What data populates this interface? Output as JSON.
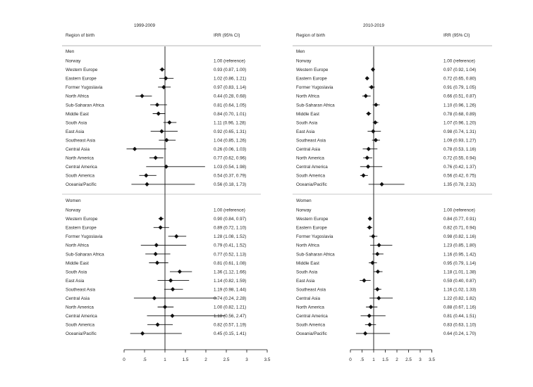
{
  "chart_data": [
    {
      "type": "forest",
      "title": "1999-2009",
      "column_headers": {
        "region": "Region of birth",
        "irr": "IRR (95% CI)"
      },
      "x_ticks": [
        "0",
        ".5",
        "1",
        "1.5",
        "2",
        "2.5",
        "3",
        "3.5"
      ],
      "reference_line": 1,
      "xlim": [
        0,
        3.5
      ],
      "groups": [
        {
          "label": "Men",
          "rows": [
            {
              "region": "Norway",
              "irr": null,
              "lo": null,
              "hi": null,
              "text": "1.00 (reference)"
            },
            {
              "region": "Western Europe",
              "irr": 0.93,
              "lo": 0.87,
              "hi": 1.0,
              "text": "0.93 (0.87, 1.00)"
            },
            {
              "region": "Eastern Europe",
              "irr": 1.02,
              "lo": 0.86,
              "hi": 1.21,
              "text": "1.02 (0.86, 1.21)"
            },
            {
              "region": "Former Yugoslavia",
              "irr": 0.97,
              "lo": 0.83,
              "hi": 1.14,
              "text": "0.97 (0.83, 1.14)"
            },
            {
              "region": "North Africa",
              "irr": 0.44,
              "lo": 0.28,
              "hi": 0.68,
              "text": "0.44 (0.28, 0.68)"
            },
            {
              "region": "Sub-Saharan Africa",
              "irr": 0.81,
              "lo": 0.64,
              "hi": 1.05,
              "text": "0.81 (0.64, 1.05)"
            },
            {
              "region": "Middle East",
              "irr": 0.84,
              "lo": 0.7,
              "hi": 1.01,
              "text": "0.84 (0.70, 1.01)"
            },
            {
              "region": "South Asia",
              "irr": 1.11,
              "lo": 0.96,
              "hi": 1.28,
              "text": "1.11 (0.96, 1.28)"
            },
            {
              "region": "East Asia",
              "irr": 0.92,
              "lo": 0.65,
              "hi": 1.31,
              "text": "0.92 (0.65, 1.31)"
            },
            {
              "region": "Southeast Asia",
              "irr": 1.04,
              "lo": 0.85,
              "hi": 1.26,
              "text": "1.04 (0.85, 1.26)"
            },
            {
              "region": "Central Asia",
              "irr": 0.26,
              "lo": 0.06,
              "hi": 1.03,
              "text": "0.26 (0.06, 1.03)"
            },
            {
              "region": "North America",
              "irr": 0.77,
              "lo": 0.62,
              "hi": 0.96,
              "text": "0.77 (0.62, 0.96)"
            },
            {
              "region": "Central America",
              "irr": 1.03,
              "lo": 0.54,
              "hi": 1.98,
              "text": "1.03 (0.54, 1.98)"
            },
            {
              "region": "South America",
              "irr": 0.54,
              "lo": 0.37,
              "hi": 0.79,
              "text": "0.54 (0.37, 0.79)"
            },
            {
              "region": "Oceania/Pacific",
              "irr": 0.56,
              "lo": 0.18,
              "hi": 1.73,
              "text": "0.56 (0.18, 1.73)"
            }
          ]
        },
        {
          "label": "Women",
          "rows": [
            {
              "region": "Norway",
              "irr": null,
              "lo": null,
              "hi": null,
              "text": "1.00 (reference)"
            },
            {
              "region": "Western Europe",
              "irr": 0.9,
              "lo": 0.84,
              "hi": 0.97,
              "text": "0.90 (0.84, 0.97)"
            },
            {
              "region": "Eastern Europe",
              "irr": 0.89,
              "lo": 0.72,
              "hi": 1.1,
              "text": "0.89 (0.72, 1.10)"
            },
            {
              "region": "Former Yugoslavia",
              "irr": 1.28,
              "lo": 1.08,
              "hi": 1.52,
              "text": "1.28 (1.08, 1.52)"
            },
            {
              "region": "North Africa",
              "irr": 0.79,
              "lo": 0.41,
              "hi": 1.52,
              "text": "0.79 (0.41, 1.52)"
            },
            {
              "region": "Sub-Saharan Africa",
              "irr": 0.77,
              "lo": 0.52,
              "hi": 1.13,
              "text": "0.77 (0.52, 1.13)"
            },
            {
              "region": "Middle East",
              "irr": 0.81,
              "lo": 0.61,
              "hi": 1.08,
              "text": "0.81 (0.61, 1.08)"
            },
            {
              "region": "South Asia",
              "irr": 1.36,
              "lo": 1.12,
              "hi": 1.66,
              "text": "1.36 (1.12, 1.66)"
            },
            {
              "region": "East Asia",
              "irr": 1.14,
              "lo": 0.82,
              "hi": 1.59,
              "text": "1.14 (0.82, 1.59)"
            },
            {
              "region": "Southeast Asia",
              "irr": 1.19,
              "lo": 0.98,
              "hi": 1.44,
              "text": "1.19 (0.98, 1.44)"
            },
            {
              "region": "Central Asia",
              "irr": 0.74,
              "lo": 0.24,
              "hi": 2.28,
              "text": "0.74 (0.24, 2.28)"
            },
            {
              "region": "North America",
              "irr": 1.0,
              "lo": 0.82,
              "hi": 1.21,
              "text": "1.00 (0.82, 1.21)"
            },
            {
              "region": "Central America",
              "irr": 1.18,
              "lo": 0.56,
              "hi": 2.47,
              "text": "1.18 (0.56, 2.47)"
            },
            {
              "region": "South America",
              "irr": 0.82,
              "lo": 0.57,
              "hi": 1.19,
              "text": "0.82 (0.57, 1.19)"
            },
            {
              "region": "Oceania/Pacific",
              "irr": 0.45,
              "lo": 0.15,
              "hi": 1.41,
              "text": "0.45 (0.15, 1.41)"
            }
          ]
        }
      ]
    },
    {
      "type": "forest",
      "title": "2010-2019",
      "column_headers": {
        "region": "Region of birth",
        "irr": "IRR (95% CI)"
      },
      "x_ticks": [
        "0",
        ".5",
        "1",
        "1.5",
        "2",
        "2.5",
        "3",
        "3.5"
      ],
      "reference_line": 1,
      "xlim": [
        0,
        3.5
      ],
      "groups": [
        {
          "label": "Men",
          "rows": [
            {
              "region": "Norway",
              "irr": null,
              "lo": null,
              "hi": null,
              "text": "1.00 (reference)"
            },
            {
              "region": "Western Europe",
              "irr": 0.97,
              "lo": 0.92,
              "hi": 1.04,
              "text": "0.97 (0.92, 1.04)"
            },
            {
              "region": "Eastern Europe",
              "irr": 0.72,
              "lo": 0.65,
              "hi": 0.8,
              "text": "0.72 (0.65, 0.80)"
            },
            {
              "region": "Former Yugoslavia",
              "irr": 0.91,
              "lo": 0.79,
              "hi": 1.05,
              "text": "0.91 (0.79, 1.05)"
            },
            {
              "region": "North Africa",
              "irr": 0.66,
              "lo": 0.51,
              "hi": 0.87,
              "text": "0.66 (0.51, 0.87)"
            },
            {
              "region": "Sub-Saharan Africa",
              "irr": 1.1,
              "lo": 0.96,
              "hi": 1.26,
              "text": "1.10 (0.96, 1.26)"
            },
            {
              "region": "Middle East",
              "irr": 0.78,
              "lo": 0.68,
              "hi": 0.89,
              "text": "0.78 (0.68, 0.89)"
            },
            {
              "region": "South Asia",
              "irr": 1.07,
              "lo": 0.96,
              "hi": 1.2,
              "text": "1.07 (0.96, 1.20)"
            },
            {
              "region": "East Asia",
              "irr": 0.98,
              "lo": 0.74,
              "hi": 1.31,
              "text": "0.98 (0.74, 1.31)"
            },
            {
              "region": "Southeast Asia",
              "irr": 1.09,
              "lo": 0.93,
              "hi": 1.27,
              "text": "1.09 (0.93, 1.27)"
            },
            {
              "region": "Central Asia",
              "irr": 0.78,
              "lo": 0.53,
              "hi": 1.16,
              "text": "0.78 (0.53, 1.16)"
            },
            {
              "region": "North America",
              "irr": 0.72,
              "lo": 0.55,
              "hi": 0.94,
              "text": "0.72 (0.55, 0.94)"
            },
            {
              "region": "Central America",
              "irr": 0.76,
              "lo": 0.42,
              "hi": 1.37,
              "text": "0.76 (0.42, 1.37)"
            },
            {
              "region": "South America",
              "irr": 0.56,
              "lo": 0.42,
              "hi": 0.75,
              "text": "0.56 (0.42, 0.75)"
            },
            {
              "region": "Oceania/Pacific",
              "irr": 1.35,
              "lo": 0.78,
              "hi": 2.32,
              "text": "1.35 (0.78, 2.32)"
            }
          ]
        },
        {
          "label": "Women",
          "rows": [
            {
              "region": "Norway",
              "irr": null,
              "lo": null,
              "hi": null,
              "text": "1.00 (reference)"
            },
            {
              "region": "Western Europe",
              "irr": 0.84,
              "lo": 0.77,
              "hi": 0.91,
              "text": "0.84 (0.77, 0.91)"
            },
            {
              "region": "Eastern Europe",
              "irr": 0.82,
              "lo": 0.71,
              "hi": 0.94,
              "text": "0.82 (0.71, 0.94)"
            },
            {
              "region": "Former Yugoslavia",
              "irr": 0.98,
              "lo": 0.82,
              "hi": 1.16,
              "text": "0.98 (0.82, 1.16)"
            },
            {
              "region": "North Africa",
              "irr": 1.23,
              "lo": 0.85,
              "hi": 1.8,
              "text": "1.23 (0.85, 1.80)"
            },
            {
              "region": "Sub-Saharan Africa",
              "irr": 1.16,
              "lo": 0.95,
              "hi": 1.42,
              "text": "1.16 (0.95, 1.42)"
            },
            {
              "region": "Middle East",
              "irr": 0.95,
              "lo": 0.79,
              "hi": 1.14,
              "text": "0.95 (0.79, 1.14)"
            },
            {
              "region": "South Asia",
              "irr": 1.18,
              "lo": 1.01,
              "hi": 1.38,
              "text": "1.18 (1.01, 1.38)"
            },
            {
              "region": "East Asia",
              "irr": 0.59,
              "lo": 0.4,
              "hi": 0.87,
              "text": "0.59 (0.40, 0.87)"
            },
            {
              "region": "Southeast Asia",
              "irr": 1.16,
              "lo": 1.02,
              "hi": 1.33,
              "text": "1.16 (1.02, 1.33)"
            },
            {
              "region": "Central Asia",
              "irr": 1.22,
              "lo": 0.82,
              "hi": 1.82,
              "text": "1.22 (0.82, 1.82)"
            },
            {
              "region": "North America",
              "irr": 0.88,
              "lo": 0.67,
              "hi": 1.16,
              "text": "0.88 (0.67, 1.16)"
            },
            {
              "region": "Central America",
              "irr": 0.81,
              "lo": 0.44,
              "hi": 1.51,
              "text": "0.81 (0.44, 1.51)"
            },
            {
              "region": "South America",
              "irr": 0.83,
              "lo": 0.63,
              "hi": 1.1,
              "text": "0.83 (0.63, 1.10)"
            },
            {
              "region": "Oceania/Pacific",
              "irr": 0.64,
              "lo": 0.24,
              "hi": 1.7,
              "text": "0.64 (0.24, 1.70)"
            }
          ]
        }
      ]
    }
  ]
}
